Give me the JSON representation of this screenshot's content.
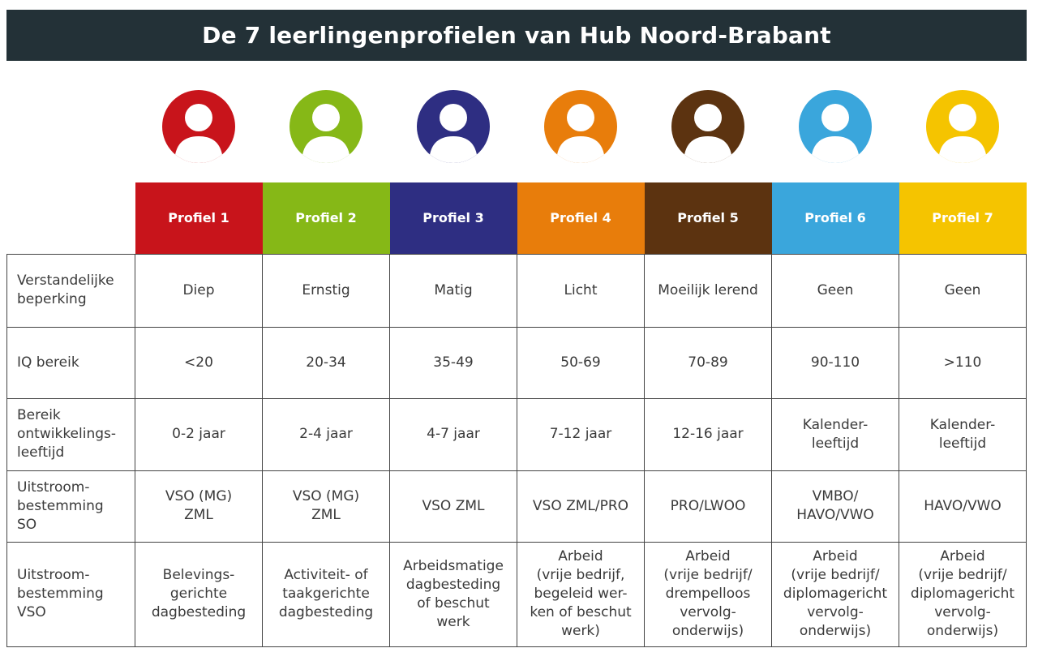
{
  "title": "De 7 leerlingenprofielen van Hub Noord-Brabant",
  "profiles": [
    {
      "label": "Profiel 1",
      "color": "#c8141b",
      "icon": "person-icon"
    },
    {
      "label": "Profiel 2",
      "color": "#86b817",
      "icon": "person-icon"
    },
    {
      "label": "Profiel 3",
      "color": "#2e2e82",
      "icon": "person-icon"
    },
    {
      "label": "Profiel 4",
      "color": "#e87d0b",
      "icon": "person-icon"
    },
    {
      "label": "Profiel 5",
      "color": "#5c3310",
      "icon": "person-icon"
    },
    {
      "label": "Profiel 6",
      "color": "#3aa6dc",
      "icon": "person-icon"
    },
    {
      "label": "Profiel 7",
      "color": "#f5c400",
      "icon": "person-icon"
    }
  ],
  "rows": [
    {
      "label": "Verstandelijke\nbeperking",
      "cells": [
        "Diep",
        "Ernstig",
        "Matig",
        "Licht",
        "Moeilijk lerend",
        "Geen",
        "Geen"
      ]
    },
    {
      "label": "IQ bereik",
      "cells": [
        "<20",
        "20-34",
        "35-49",
        "50-69",
        "70-89",
        "90-110",
        ">110"
      ]
    },
    {
      "label": "Bereik\nontwikkelings-\nleeftijd",
      "cells": [
        "0-2 jaar",
        "2-4 jaar",
        "4-7 jaar",
        "7-12 jaar",
        "12-16 jaar",
        "Kalender-\nleeftijd",
        "Kalender-\nleeftijd"
      ]
    },
    {
      "label": "Uitstroom-\nbestemming\nSO",
      "cells": [
        "VSO (MG)\nZML",
        "VSO (MG)\nZML",
        "VSO ZML",
        "VSO ZML/PRO",
        "PRO/LWOO",
        "VMBO/\nHAVO/VWO",
        "HAVO/VWO"
      ]
    },
    {
      "label": "Uitstroom-\nbestemming\nVSO",
      "cells": [
        "Belevings-\ngerichte\ndagbesteding",
        "Activiteit- of\ntaakgerichte\ndagbesteding",
        "Arbeidsmatige\ndagbesteding\nof beschut\nwerk",
        "Arbeid\n(vrije bedrijf,\nbegeleid wer-\nken of beschut\nwerk)",
        "Arbeid\n(vrije bedrijf/\ndrempelloos\nvervolg-\nonderwijs)",
        "Arbeid\n(vrije bedrijf/\ndiplomagericht\nvervolg-\nonderwijs)",
        "Arbeid\n(vrije bedrijf/\ndiplomagericht\nvervolg-\nonderwijs)"
      ]
    }
  ]
}
